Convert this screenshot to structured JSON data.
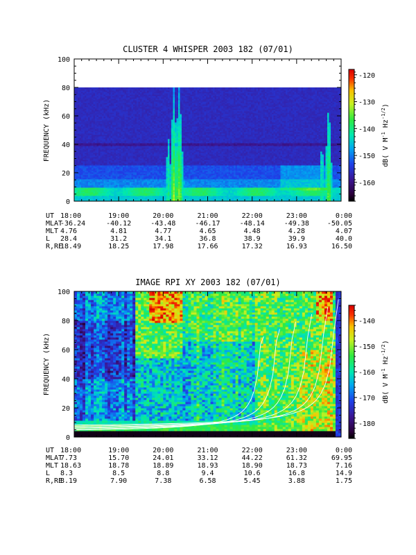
{
  "chart_data": [
    {
      "type": "heatmap",
      "title": "CLUSTER 4 WHISPER 2003 182 (07/01)",
      "ylabel": "FREQUENCY (kHz)",
      "ylim": [
        0,
        100
      ],
      "yticks": [
        "0",
        "20",
        "40",
        "60",
        "80",
        "100"
      ],
      "colorbar": {
        "label": "dB( V M⁻¹ Hz⁻¹ᐟ²)",
        "label_parts": {
          "pre": "dB( V M",
          "e1": "-1",
          "mid": " Hz",
          "e2": "-1/2",
          "post": ")"
        },
        "range": [
          -167,
          -118
        ],
        "ticks": [
          "-120",
          "-130",
          "-140",
          "-150",
          "-160"
        ],
        "tick_values": [
          -120,
          -130,
          -140,
          -150,
          -160
        ]
      },
      "ephemeris": {
        "labels": [
          "UT",
          "MLAT",
          "MLT",
          "L",
          "R,RE"
        ],
        "columns": [
          [
            "18:00",
            "-36.24",
            "4.76",
            "28.4",
            "18.49"
          ],
          [
            "19:00",
            "-40.12",
            "4.81",
            "31.2",
            "18.25"
          ],
          [
            "20:00",
            "-43.48",
            "4.77",
            "34.1",
            "17.98"
          ],
          [
            "21:00",
            "-46.17",
            "4.65",
            "36.8",
            "17.66"
          ],
          [
            "22:00",
            "-48.14",
            "4.48",
            "38.9",
            "17.32"
          ],
          [
            "23:00",
            "-49.38",
            "4.28",
            "39.9",
            "16.93"
          ],
          [
            "0:00",
            "-50.05",
            "4.07",
            "40.0",
            "16.50"
          ]
        ]
      },
      "data_fmax_khz": 80
    },
    {
      "type": "heatmap",
      "title": "IMAGE RPI XY 2003 182 (07/01)",
      "ylabel": "FREQUENCY (kHz)",
      "ylim": [
        0,
        100
      ],
      "yticks": [
        "0",
        "20",
        "40",
        "60",
        "80",
        "100"
      ],
      "colorbar": {
        "label": "dB( V M⁻¹ Hz⁻¹ᐟ²)",
        "label_parts": {
          "pre": "dB( V M",
          "e1": "-1",
          "mid": " Hz",
          "e2": "-1/2",
          "post": ")"
        },
        "range": [
          -186,
          -134
        ],
        "ticks": [
          "-140",
          "-150",
          "-160",
          "-170",
          "-180"
        ],
        "tick_values": [
          -140,
          -150,
          -160,
          -170,
          -180
        ]
      },
      "ephemeris": {
        "labels": [
          "UT",
          "MLAT",
          "MLT",
          "L",
          "R,RE"
        ],
        "columns": [
          [
            "18:00",
            "7.73",
            "18.63",
            "8.3",
            "8.19"
          ],
          [
            "19:00",
            "15.70",
            "18.78",
            "8.5",
            "7.90"
          ],
          [
            "20:00",
            "24.01",
            "18.89",
            "8.8",
            "7.38"
          ],
          [
            "21:00",
            "33.12",
            "18.93",
            "9.4",
            "6.58"
          ],
          [
            "22:00",
            "44.22",
            "18.90",
            "10.6",
            "5.45"
          ],
          [
            "23:00",
            "61.32",
            "18.73",
            "16.8",
            "3.88"
          ],
          [
            "0:00",
            "69.95",
            "7.16",
            "14.9",
            "1.75"
          ]
        ]
      }
    }
  ]
}
